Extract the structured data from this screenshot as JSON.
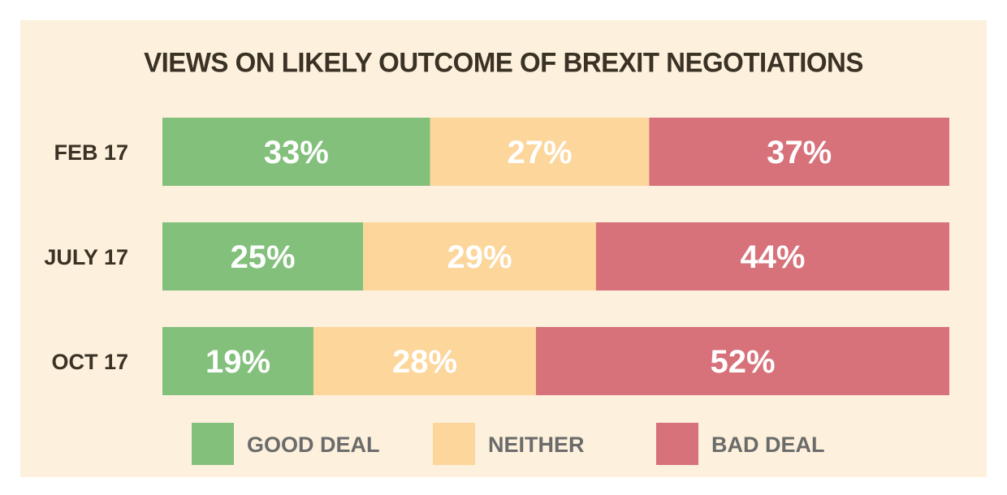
{
  "chart_data": {
    "type": "bar",
    "orientation": "horizontal",
    "stacked": true,
    "title": "VIEWS ON LIKELY OUTCOME OF BREXIT NEGOTIATIONS",
    "categories": [
      "FEB 17",
      "JULY 17",
      "OCT 17"
    ],
    "series": [
      {
        "name": "GOOD DEAL",
        "values": [
          33,
          25,
          19
        ],
        "labels": [
          "33%",
          "25%",
          "19%"
        ],
        "color": "#82c07c"
      },
      {
        "name": "NEITHER",
        "values": [
          27,
          29,
          28
        ],
        "labels": [
          "27%",
          "29%",
          "28%"
        ],
        "color": "#fcd69b"
      },
      {
        "name": "BAD DEAL",
        "values": [
          37,
          44,
          52
        ],
        "labels": [
          "37%",
          "44%",
          "52%"
        ],
        "color": "#d7717a"
      }
    ],
    "legend_position": "bottom",
    "grid": false
  },
  "colors": {
    "background": "#fdf0dc",
    "title_text": "#3b3226",
    "legend_text": "#6b6b6b",
    "value_text": "#ffffff"
  }
}
